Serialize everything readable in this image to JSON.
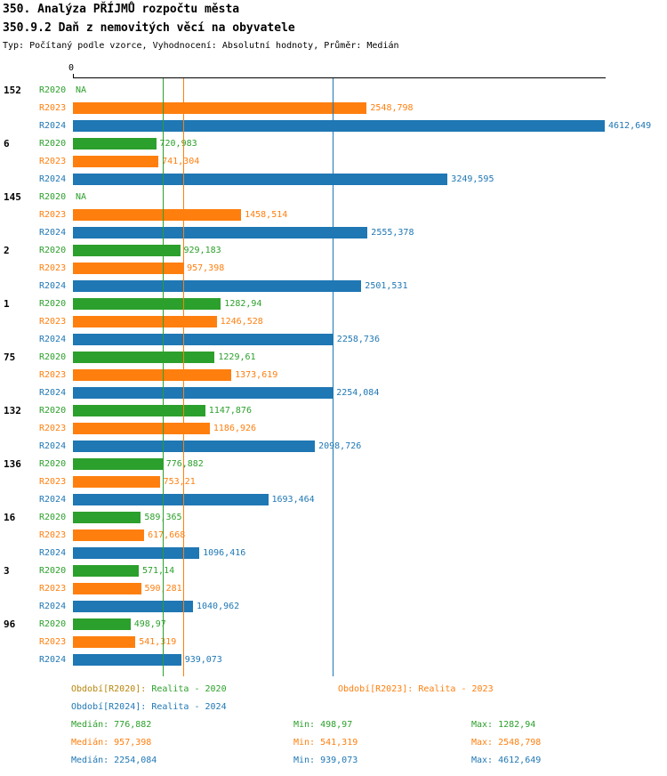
{
  "header": {
    "title": "350. Analýza PŘÍJMŮ rozpočtu města",
    "subtitle": "350.9.2 Daň z nemovitých věcí na obyvatele",
    "meta": "Typ: Počítaný podle vzorce, Vyhodnocení: Absolutní hodnoty, Průměr: Medián"
  },
  "colors": {
    "r2020": "#2ca02c",
    "r2023": "#ff7f0e",
    "r2024": "#1f77b4",
    "axis": "#000000"
  },
  "chart_data": {
    "type": "bar",
    "orientation": "horizontal",
    "title": "350. Analýza PŘÍJMŮ rozpočtu města",
    "subtitle": "350.9.2 Daň z nemovitých věcí na obyvatele",
    "x_origin_label": "0",
    "xlim": [
      0,
      4612.649
    ],
    "grid": false,
    "categories": [
      "152",
      "6",
      "145",
      "2",
      "1",
      "75",
      "132",
      "136",
      "16",
      "3",
      "96"
    ],
    "series": [
      {
        "name": "R2020",
        "color": "#2ca02c",
        "values": [
          null,
          720.983,
          null,
          929.183,
          1282.94,
          1229.61,
          1147.876,
          776.882,
          589.365,
          571.14,
          498.97
        ],
        "labels": [
          "NA",
          "720,983",
          "NA",
          "929,183",
          "1282,94",
          "1229,61",
          "1147,876",
          "776,882",
          "589,365",
          "571,14",
          "498,97"
        ]
      },
      {
        "name": "R2023",
        "color": "#ff7f0e",
        "values": [
          2548.798,
          741.304,
          1458.514,
          957.398,
          1246.528,
          1373.619,
          1186.926,
          753.21,
          617.668,
          590.281,
          541.319
        ],
        "labels": [
          "2548,798",
          "741,304",
          "1458,514",
          "957,398",
          "1246,528",
          "1373,619",
          "1186,926",
          "753,21",
          "617,668",
          "590,281",
          "541,319"
        ]
      },
      {
        "name": "R2024",
        "color": "#1f77b4",
        "values": [
          4612.649,
          3249.595,
          2555.378,
          2501.531,
          2258.736,
          2254.084,
          2098.726,
          1693.464,
          1096.416,
          1040.962,
          939.073
        ],
        "labels": [
          "4612,649",
          "3249,595",
          "2555,378",
          "2501,531",
          "2258,736",
          "2254,084",
          "2098,726",
          "1693,464",
          "1096,416",
          "1040,962",
          "939,073"
        ]
      }
    ],
    "median_lines": [
      {
        "series": "R2020",
        "value": 776.882,
        "color": "#2ca02c"
      },
      {
        "series": "R2023",
        "value": 957.398,
        "color": "#ff7f0e"
      },
      {
        "series": "R2024",
        "value": 2254.084,
        "color": "#1f77b4"
      }
    ]
  },
  "legend": {
    "rows": [
      [
        {
          "prefix": "Období[R2020]:",
          "label": "Realita - 2020",
          "prefix_color": "#b8860b",
          "color": "#2ca02c"
        },
        {
          "prefix": "Období[R2023]:",
          "label": "Realita - 2023",
          "prefix_color": "#ff7f0e",
          "color": "#ff7f0e"
        }
      ],
      [
        {
          "prefix": "Období[R2024]:",
          "label": "Realita - 2024",
          "prefix_color": "#1f77b4",
          "color": "#1f77b4"
        }
      ]
    ]
  },
  "stats": [
    {
      "color": "#2ca02c",
      "median": "Medián: 776,882",
      "min": "Min: 498,97",
      "max": "Max: 1282,94"
    },
    {
      "color": "#ff7f0e",
      "median": "Medián: 957,398",
      "min": "Min: 541,319",
      "max": "Max: 2548,798"
    },
    {
      "color": "#1f77b4",
      "median": "Medián: 2254,084",
      "min": "Min: 939,073",
      "max": "Max: 4612,649"
    }
  ]
}
